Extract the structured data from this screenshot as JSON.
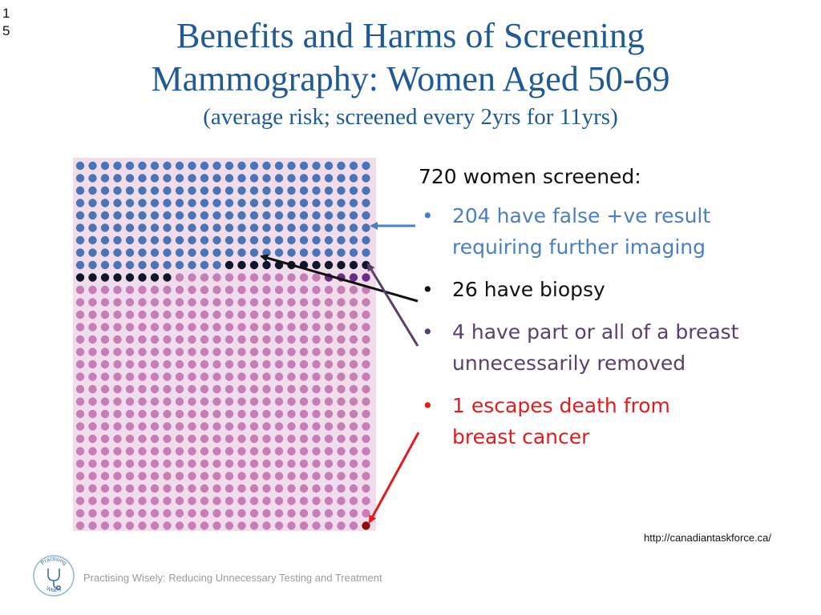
{
  "slide_number": "15",
  "title": {
    "line1": "Benefits and Harms of Screening",
    "line2": "Mammography: Women Aged 50-69",
    "subtitle": "(average risk; screened every 2yrs for 11yrs)"
  },
  "summary": {
    "heading": "720 women screened:",
    "items": [
      {
        "text_line1": "204 have false +ve result",
        "text_line2": "requiring further imaging",
        "color": "#4a7fc3"
      },
      {
        "text_line1": "26 have biopsy",
        "text_line2": "",
        "color": "#111111"
      },
      {
        "text_line1": "4 have part or all of a breast",
        "text_line2": "unnecessarily removed",
        "color": "#5b3f6b"
      },
      {
        "text_line1": "1 escapes death from",
        "text_line2": "breast cancer",
        "color": "#e31b1b"
      }
    ]
  },
  "source_url": "http://canadiantaskforce.ca/",
  "footer": "Practising Wisely: Reducing Unnecessary Testing and Treatment",
  "logo": {
    "text_top": "Practising",
    "text_bottom": "Wisely",
    "icon": "stethoscope-icon"
  },
  "icon_array": {
    "total": 720,
    "columns": 24,
    "rows": 30,
    "groups": [
      {
        "label": "false positive",
        "count": 204,
        "color": "#4a74b8"
      },
      {
        "label": "biopsy",
        "count": 26,
        "color": "#0f1730"
      },
      {
        "label": "breast removed",
        "count": 4,
        "color": "#6b2d84"
      },
      {
        "label": "escapes death",
        "count": 1,
        "color": "#8b1010"
      },
      {
        "label": "other women",
        "count": 485,
        "color": "#c77db6"
      }
    ],
    "background": "#f1dcea"
  },
  "colors": {
    "title": "#1f5a96",
    "arrow_blue": "#4a7fc3",
    "arrow_black": "#111111",
    "arrow_purple": "#5b3f6b",
    "arrow_red": "#e31b1b"
  }
}
